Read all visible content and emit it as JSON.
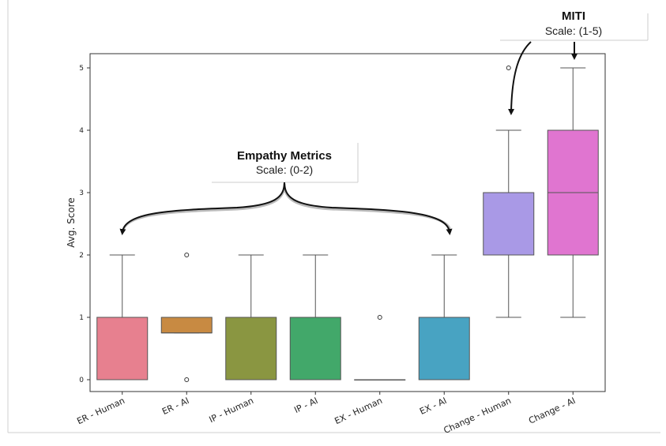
{
  "chart_data": {
    "type": "box",
    "ylabel": "Avg. Score",
    "ylim": [
      -0.2,
      5.25
    ],
    "yticks": [
      0,
      1,
      2,
      3,
      4,
      5
    ],
    "grid": false,
    "categories": [
      "ER - Human",
      "ER - AI",
      "IP - Human",
      "IP - AI",
      "EX - Human",
      "EX - AI",
      "Change - Human",
      "Change - AI"
    ],
    "boxes": [
      {
        "category": "ER - Human",
        "min": 0,
        "q1": 0,
        "median": 0,
        "q3": 1,
        "max": 2,
        "outliers": [],
        "color": "#e7808f"
      },
      {
        "category": "ER - AI",
        "min": 0.75,
        "q1": 0.75,
        "median": 0.75,
        "q3": 1,
        "max": 1,
        "outliers": [
          2,
          0
        ],
        "color": "#c88a42"
      },
      {
        "category": "IP - Human",
        "min": 0,
        "q1": 0,
        "median": 0,
        "q3": 1,
        "max": 2,
        "outliers": [],
        "color": "#8a9641"
      },
      {
        "category": "IP - AI",
        "min": 0,
        "q1": 0,
        "median": 0,
        "q3": 1,
        "max": 2,
        "outliers": [],
        "color": "#42a86a"
      },
      {
        "category": "EX - Human",
        "min": 0,
        "q1": 0,
        "median": 0,
        "q3": 0,
        "max": 0,
        "outliers": [
          1
        ],
        "color": "#47a39a"
      },
      {
        "category": "EX - AI",
        "min": 0,
        "q1": 0,
        "median": 0,
        "q3": 1,
        "max": 2,
        "outliers": [],
        "color": "#48a3c2"
      },
      {
        "category": "Change - Human",
        "min": 1,
        "q1": 2,
        "median": 2,
        "q3": 3,
        "max": 4,
        "outliers": [
          5
        ],
        "color": "#a999e6"
      },
      {
        "category": "Change - AI",
        "min": 1,
        "q1": 2,
        "median": 3,
        "q3": 4,
        "max": 5,
        "outliers": [],
        "color": "#e075d0"
      }
    ],
    "annotations": {
      "empathy": {
        "title": "Empathy Metrics",
        "subtitle": "Scale: (0-2)"
      },
      "miti": {
        "title": "MITI",
        "subtitle": "Scale: (1-5)"
      }
    }
  }
}
